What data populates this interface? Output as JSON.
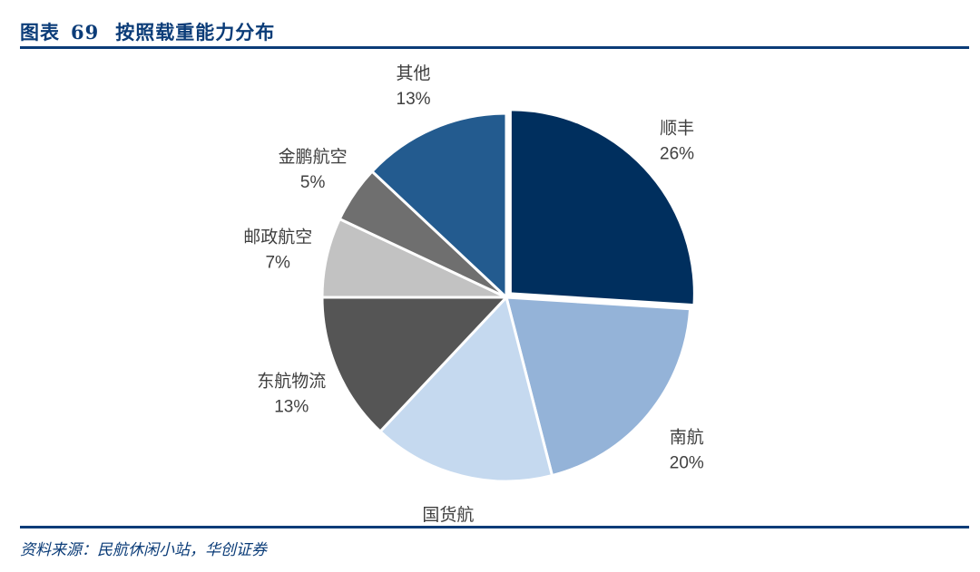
{
  "figure": {
    "title_prefix": "图表",
    "title_number": "69",
    "title_text": "按照载重能力分布",
    "source": "资料来源：民航休闲小站，华创证券"
  },
  "chart_data": {
    "type": "pie",
    "title": "按照载重能力分布",
    "labels": [
      "顺丰",
      "南航",
      "国货航",
      "东航物流",
      "邮政航空",
      "金鹏航空",
      "其他"
    ],
    "values": [
      26,
      20,
      16,
      13,
      7,
      5,
      13
    ],
    "value_labels": [
      "26%",
      "20%",
      "16%",
      "13%",
      "7%",
      "5%",
      "13%"
    ],
    "colors": [
      "#002f5e",
      "#94b3d8",
      "#c5d9ef",
      "#555555",
      "#c2c2c2",
      "#6f6f6f",
      "#235b8f"
    ],
    "start": "12 o'clock, clockwise",
    "legend": "none"
  }
}
